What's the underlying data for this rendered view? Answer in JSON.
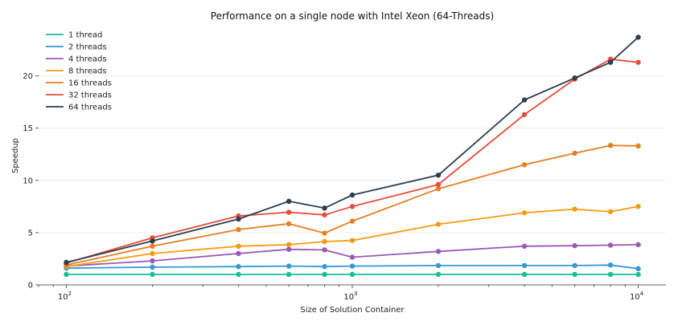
{
  "chart_data": {
    "type": "line",
    "title": "Performance on a single node with Intel Xeon (64-Threads)",
    "xlabel": "Size of Solution Container",
    "ylabel": "Speedup",
    "xscale": "log",
    "xlim": [
      80,
      12500
    ],
    "ylim": [
      0,
      24.5
    ],
    "yticks": [
      0,
      5,
      10,
      15,
      20
    ],
    "xticks": [
      {
        "value": 100,
        "base": "10",
        "exp": "2"
      },
      {
        "value": 1000,
        "base": "10",
        "exp": "3"
      },
      {
        "value": 10000,
        "base": "10",
        "exp": "4"
      }
    ],
    "grid": true,
    "legend_position": "top-left",
    "x": [
      100,
      200,
      400,
      600,
      800,
      1000,
      2000,
      4000,
      6000,
      8000,
      10000
    ],
    "series": [
      {
        "name": "1 thread",
        "color": "#1abc9c",
        "values": [
          1.0,
          1.0,
          1.0,
          1.0,
          1.0,
          1.0,
          1.0,
          1.0,
          1.0,
          1.0,
          1.0
        ]
      },
      {
        "name": "2 threads",
        "color": "#3498db",
        "values": [
          1.6,
          1.7,
          1.75,
          1.8,
          1.75,
          1.8,
          1.85,
          1.85,
          1.85,
          1.9,
          1.55
        ]
      },
      {
        "name": "4 threads",
        "color": "#9b59b6",
        "values": [
          1.8,
          2.3,
          3.0,
          3.4,
          3.35,
          2.65,
          3.2,
          3.7,
          3.75,
          3.8,
          3.85
        ]
      },
      {
        "name": "8 threads",
        "color": "#f39c12",
        "values": [
          1.75,
          3.0,
          3.7,
          3.85,
          4.15,
          4.25,
          5.8,
          6.9,
          7.25,
          7.0,
          7.5
        ]
      },
      {
        "name": "16 threads",
        "color": "#e67e22",
        "values": [
          1.9,
          3.7,
          5.3,
          5.85,
          4.95,
          6.1,
          9.2,
          11.5,
          12.6,
          13.35,
          13.3
        ]
      },
      {
        "name": "32 threads",
        "color": "#e74c3c",
        "values": [
          2.1,
          4.5,
          6.6,
          6.95,
          6.7,
          7.5,
          9.6,
          16.3,
          19.7,
          21.6,
          21.3
        ]
      },
      {
        "name": "64 threads",
        "color": "#2c3e50",
        "values": [
          2.15,
          4.2,
          6.3,
          8.0,
          7.35,
          8.6,
          10.5,
          17.7,
          19.8,
          21.3,
          23.7
        ]
      }
    ]
  }
}
